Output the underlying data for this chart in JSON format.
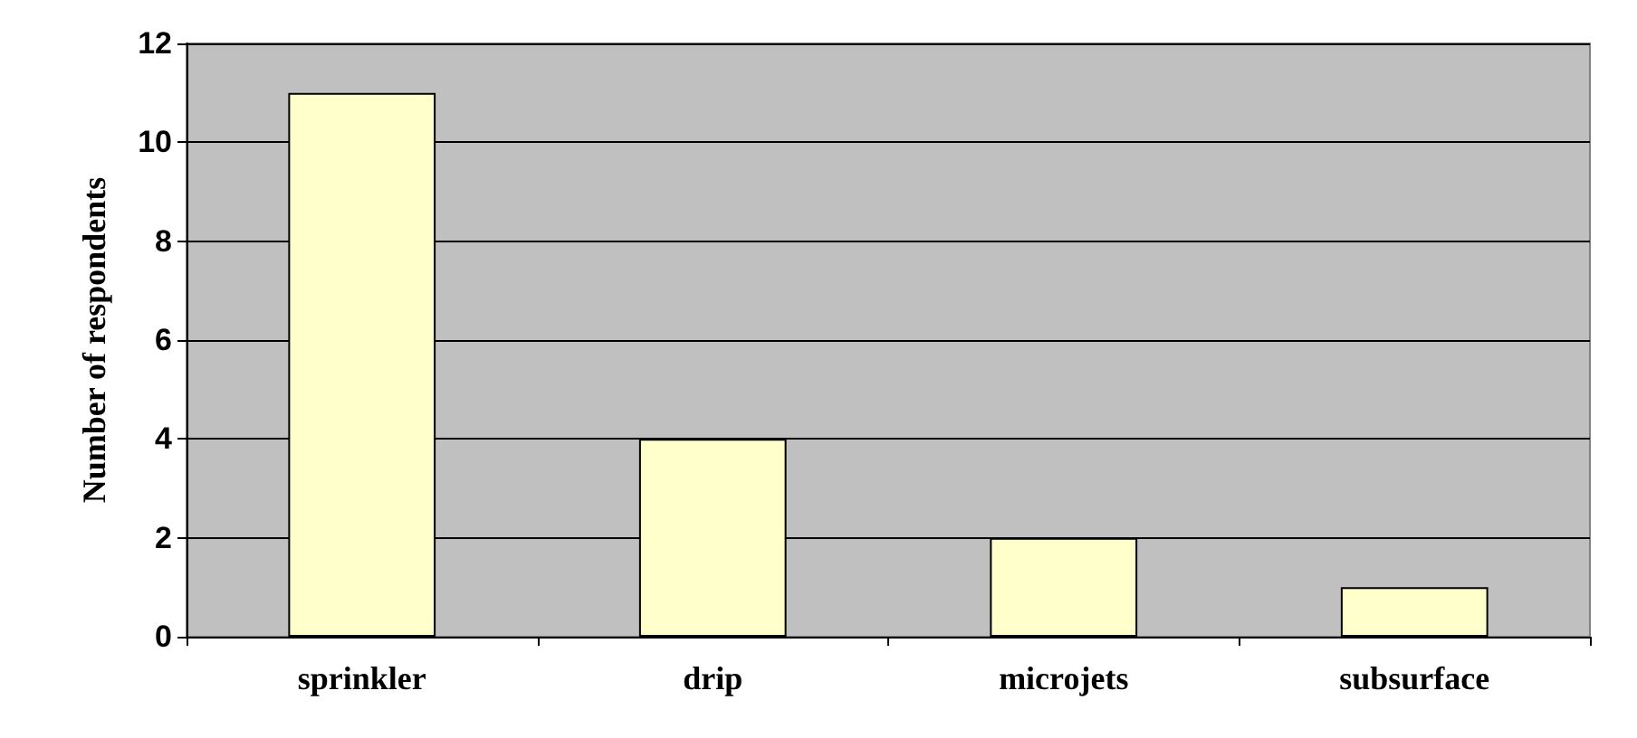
{
  "chart_data": {
    "type": "bar",
    "ylabel": "Number of respondents",
    "categories": [
      "sprinkler",
      "drip",
      "microjets",
      "subsurface"
    ],
    "values": [
      11,
      4,
      2,
      1
    ],
    "color": "#ffffcc",
    "ylim": [
      0,
      12
    ],
    "yticks": [
      0,
      2,
      4,
      6,
      8,
      10,
      12
    ],
    "grid": true
  }
}
